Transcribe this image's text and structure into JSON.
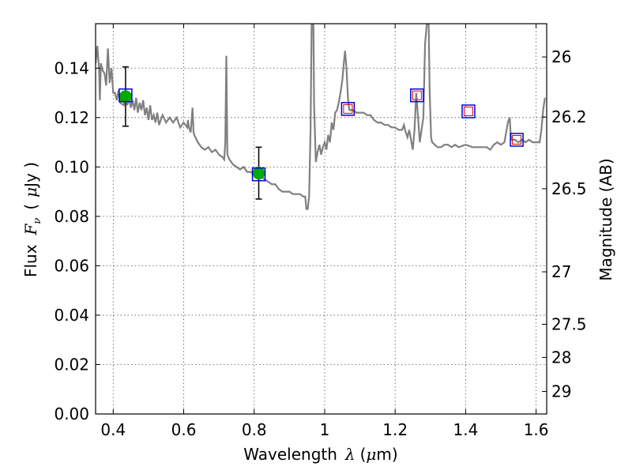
{
  "chart_data": {
    "type": "scatter",
    "xlabel": {
      "text": "Wavelength",
      "symbol": "λ",
      "unit": "(",
      "mu": "μ",
      "unit_end": "m)"
    },
    "ylabel": {
      "text": "Flux",
      "symbol": "F",
      "sub": "ν",
      "open": "(",
      "mu": "μ",
      "unit_end": "Jy )"
    },
    "ylabel_right": "Magnitude (AB)",
    "xlim": [
      0.35,
      1.63
    ],
    "ylim": [
      0.0,
      0.158
    ],
    "grid": true,
    "x_ticks": [
      {
        "value": 0.4,
        "label": "0.4"
      },
      {
        "value": 0.6,
        "label": "0.6"
      },
      {
        "value": 0.8,
        "label": "0.8"
      },
      {
        "value": 1.0,
        "label": "1"
      },
      {
        "value": 1.2,
        "label": "1.2"
      },
      {
        "value": 1.4,
        "label": "1.4"
      },
      {
        "value": 1.6,
        "label": "1.6"
      }
    ],
    "y_ticks": [
      {
        "value": 0.0,
        "label": "0.00"
      },
      {
        "value": 0.02,
        "label": "0.02"
      },
      {
        "value": 0.04,
        "label": "0.04"
      },
      {
        "value": 0.06,
        "label": "0.06"
      },
      {
        "value": 0.08,
        "label": "0.08"
      },
      {
        "value": 0.1,
        "label": "0.10"
      },
      {
        "value": 0.12,
        "label": "0.12"
      },
      {
        "value": 0.14,
        "label": "0.14"
      }
    ],
    "mag_ticks": [
      {
        "mag": 26,
        "label": "26"
      },
      {
        "mag": 26.2,
        "label": "26.2"
      },
      {
        "mag": 26.5,
        "label": "26.5"
      },
      {
        "mag": 27,
        "label": "27"
      },
      {
        "mag": 27.5,
        "label": "27.5"
      },
      {
        "mag": 28,
        "label": "28"
      },
      {
        "mag": 29,
        "label": "29"
      }
    ],
    "template_color": "#808080",
    "template_spectrum": [
      [
        0.35,
        0.142
      ],
      [
        0.355,
        0.149
      ],
      [
        0.36,
        0.139
      ],
      [
        0.362,
        0.127
      ],
      [
        0.365,
        0.142
      ],
      [
        0.37,
        0.139
      ],
      [
        0.375,
        0.138
      ],
      [
        0.38,
        0.133
      ],
      [
        0.385,
        0.148
      ],
      [
        0.39,
        0.134
      ],
      [
        0.395,
        0.14
      ],
      [
        0.4,
        0.13
      ],
      [
        0.405,
        0.13
      ],
      [
        0.41,
        0.127
      ],
      [
        0.415,
        0.131
      ],
      [
        0.42,
        0.126
      ],
      [
        0.43,
        0.125
      ],
      [
        0.435,
        0.13
      ],
      [
        0.44,
        0.125
      ],
      [
        0.445,
        0.128
      ],
      [
        0.45,
        0.124
      ],
      [
        0.455,
        0.127
      ],
      [
        0.46,
        0.123
      ],
      [
        0.465,
        0.128
      ],
      [
        0.47,
        0.122
      ],
      [
        0.475,
        0.126
      ],
      [
        0.48,
        0.123
      ],
      [
        0.485,
        0.127
      ],
      [
        0.49,
        0.121
      ],
      [
        0.495,
        0.124
      ],
      [
        0.5,
        0.119
      ],
      [
        0.505,
        0.125
      ],
      [
        0.51,
        0.119
      ],
      [
        0.515,
        0.121
      ],
      [
        0.52,
        0.118
      ],
      [
        0.525,
        0.122
      ],
      [
        0.53,
        0.117
      ],
      [
        0.54,
        0.121
      ],
      [
        0.55,
        0.118
      ],
      [
        0.56,
        0.12
      ],
      [
        0.57,
        0.118
      ],
      [
        0.58,
        0.12
      ],
      [
        0.59,
        0.116
      ],
      [
        0.6,
        0.118
      ],
      [
        0.61,
        0.116
      ],
      [
        0.612,
        0.119
      ],
      [
        0.615,
        0.116
      ],
      [
        0.62,
        0.114
      ],
      [
        0.625,
        0.124
      ],
      [
        0.628,
        0.114
      ],
      [
        0.63,
        0.113
      ],
      [
        0.64,
        0.11
      ],
      [
        0.65,
        0.108
      ],
      [
        0.66,
        0.107
      ],
      [
        0.67,
        0.108
      ],
      [
        0.68,
        0.106
      ],
      [
        0.69,
        0.107
      ],
      [
        0.7,
        0.105
      ],
      [
        0.71,
        0.104
      ],
      [
        0.715,
        0.103
      ],
      [
        0.718,
        0.11
      ],
      [
        0.721,
        0.145
      ],
      [
        0.724,
        0.105
      ],
      [
        0.73,
        0.103
      ],
      [
        0.74,
        0.101
      ],
      [
        0.75,
        0.1
      ],
      [
        0.76,
        0.099
      ],
      [
        0.77,
        0.1
      ],
      [
        0.78,
        0.098
      ],
      [
        0.79,
        0.098
      ],
      [
        0.8,
        0.097
      ],
      [
        0.81,
        0.096
      ],
      [
        0.82,
        0.096
      ],
      [
        0.83,
        0.095
      ],
      [
        0.84,
        0.094
      ],
      [
        0.85,
        0.093
      ],
      [
        0.86,
        0.093
      ],
      [
        0.87,
        0.091
      ],
      [
        0.88,
        0.09
      ],
      [
        0.89,
        0.09
      ],
      [
        0.9,
        0.09
      ],
      [
        0.91,
        0.089
      ],
      [
        0.92,
        0.089
      ],
      [
        0.93,
        0.089
      ],
      [
        0.94,
        0.088
      ],
      [
        0.945,
        0.088
      ],
      [
        0.948,
        0.083
      ],
      [
        0.952,
        0.083
      ],
      [
        0.956,
        0.088
      ],
      [
        0.96,
        0.115
      ],
      [
        0.963,
        0.158
      ],
      [
        0.966,
        0.158
      ],
      [
        0.968,
        0.158
      ],
      [
        0.97,
        0.125
      ],
      [
        0.975,
        0.102
      ],
      [
        0.98,
        0.106
      ],
      [
        0.985,
        0.109
      ],
      [
        0.99,
        0.105
      ],
      [
        0.995,
        0.108
      ],
      [
        1.0,
        0.11
      ],
      [
        1.005,
        0.107
      ],
      [
        1.01,
        0.113
      ],
      [
        1.015,
        0.11
      ],
      [
        1.02,
        0.118
      ],
      [
        1.025,
        0.115
      ],
      [
        1.03,
        0.122
      ],
      [
        1.035,
        0.123
      ],
      [
        1.04,
        0.126
      ],
      [
        1.045,
        0.13
      ],
      [
        1.05,
        0.135
      ],
      [
        1.055,
        0.143
      ],
      [
        1.058,
        0.147
      ],
      [
        1.062,
        0.14
      ],
      [
        1.066,
        0.128
      ],
      [
        1.07,
        0.123
      ],
      [
        1.08,
        0.123
      ],
      [
        1.09,
        0.122
      ],
      [
        1.1,
        0.122
      ],
      [
        1.11,
        0.122
      ],
      [
        1.12,
        0.121
      ],
      [
        1.13,
        0.121
      ],
      [
        1.14,
        0.119
      ],
      [
        1.15,
        0.118
      ],
      [
        1.16,
        0.118
      ],
      [
        1.17,
        0.117
      ],
      [
        1.18,
        0.117
      ],
      [
        1.19,
        0.116
      ],
      [
        1.2,
        0.116
      ],
      [
        1.21,
        0.115
      ],
      [
        1.22,
        0.115
      ],
      [
        1.225,
        0.117
      ],
      [
        1.23,
        0.114
      ],
      [
        1.235,
        0.112
      ],
      [
        1.24,
        0.115
      ],
      [
        1.245,
        0.111
      ],
      [
        1.25,
        0.107
      ],
      [
        1.255,
        0.115
      ],
      [
        1.26,
        0.13
      ],
      [
        1.265,
        0.12
      ],
      [
        1.27,
        0.11
      ],
      [
        1.275,
        0.115
      ],
      [
        1.28,
        0.12
      ],
      [
        1.285,
        0.15
      ],
      [
        1.29,
        0.158
      ],
      [
        1.295,
        0.158
      ],
      [
        1.298,
        0.13
      ],
      [
        1.302,
        0.112
      ],
      [
        1.305,
        0.11
      ],
      [
        1.32,
        0.108
      ],
      [
        1.33,
        0.108
      ],
      [
        1.34,
        0.109
      ],
      [
        1.35,
        0.109
      ],
      [
        1.36,
        0.108
      ],
      [
        1.37,
        0.109
      ],
      [
        1.38,
        0.108
      ],
      [
        1.4,
        0.109
      ],
      [
        1.42,
        0.108
      ],
      [
        1.44,
        0.108
      ],
      [
        1.46,
        0.108
      ],
      [
        1.47,
        0.107
      ],
      [
        1.48,
        0.109
      ],
      [
        1.49,
        0.11
      ],
      [
        1.5,
        0.109
      ],
      [
        1.51,
        0.11
      ],
      [
        1.515,
        0.114
      ],
      [
        1.52,
        0.118
      ],
      [
        1.525,
        0.12
      ],
      [
        1.528,
        0.113
      ],
      [
        1.53,
        0.111
      ],
      [
        1.54,
        0.111
      ],
      [
        1.55,
        0.11
      ],
      [
        1.56,
        0.111
      ],
      [
        1.57,
        0.11
      ],
      [
        1.58,
        0.111
      ],
      [
        1.59,
        0.11
      ],
      [
        1.6,
        0.11
      ],
      [
        1.61,
        0.11
      ],
      [
        1.615,
        0.115
      ],
      [
        1.62,
        0.123
      ],
      [
        1.625,
        0.128
      ]
    ],
    "detections": [
      {
        "x": 0.435,
        "y": 0.1285,
        "err": 0.012
      },
      {
        "x": 0.813,
        "y": 0.0975,
        "err": 0.0105
      }
    ],
    "detection_color": "#00aa00",
    "errorbar_color": "#000000",
    "model_photometry": [
      {
        "x": 0.435,
        "y": 0.129
      },
      {
        "x": 0.813,
        "y": 0.097
      },
      {
        "x": 1.066,
        "y": 0.1235
      },
      {
        "x": 1.262,
        "y": 0.129
      },
      {
        "x": 1.408,
        "y": 0.1225
      },
      {
        "x": 1.545,
        "y": 0.111
      }
    ],
    "model_color": "#0000dd",
    "upper_limits": [
      {
        "x": 1.066,
        "y": 0.1235
      },
      {
        "x": 1.262,
        "y": 0.129
      },
      {
        "x": 1.408,
        "y": 0.1225
      },
      {
        "x": 1.545,
        "y": 0.111
      }
    ],
    "upper_limit_color": "#dd0000"
  }
}
